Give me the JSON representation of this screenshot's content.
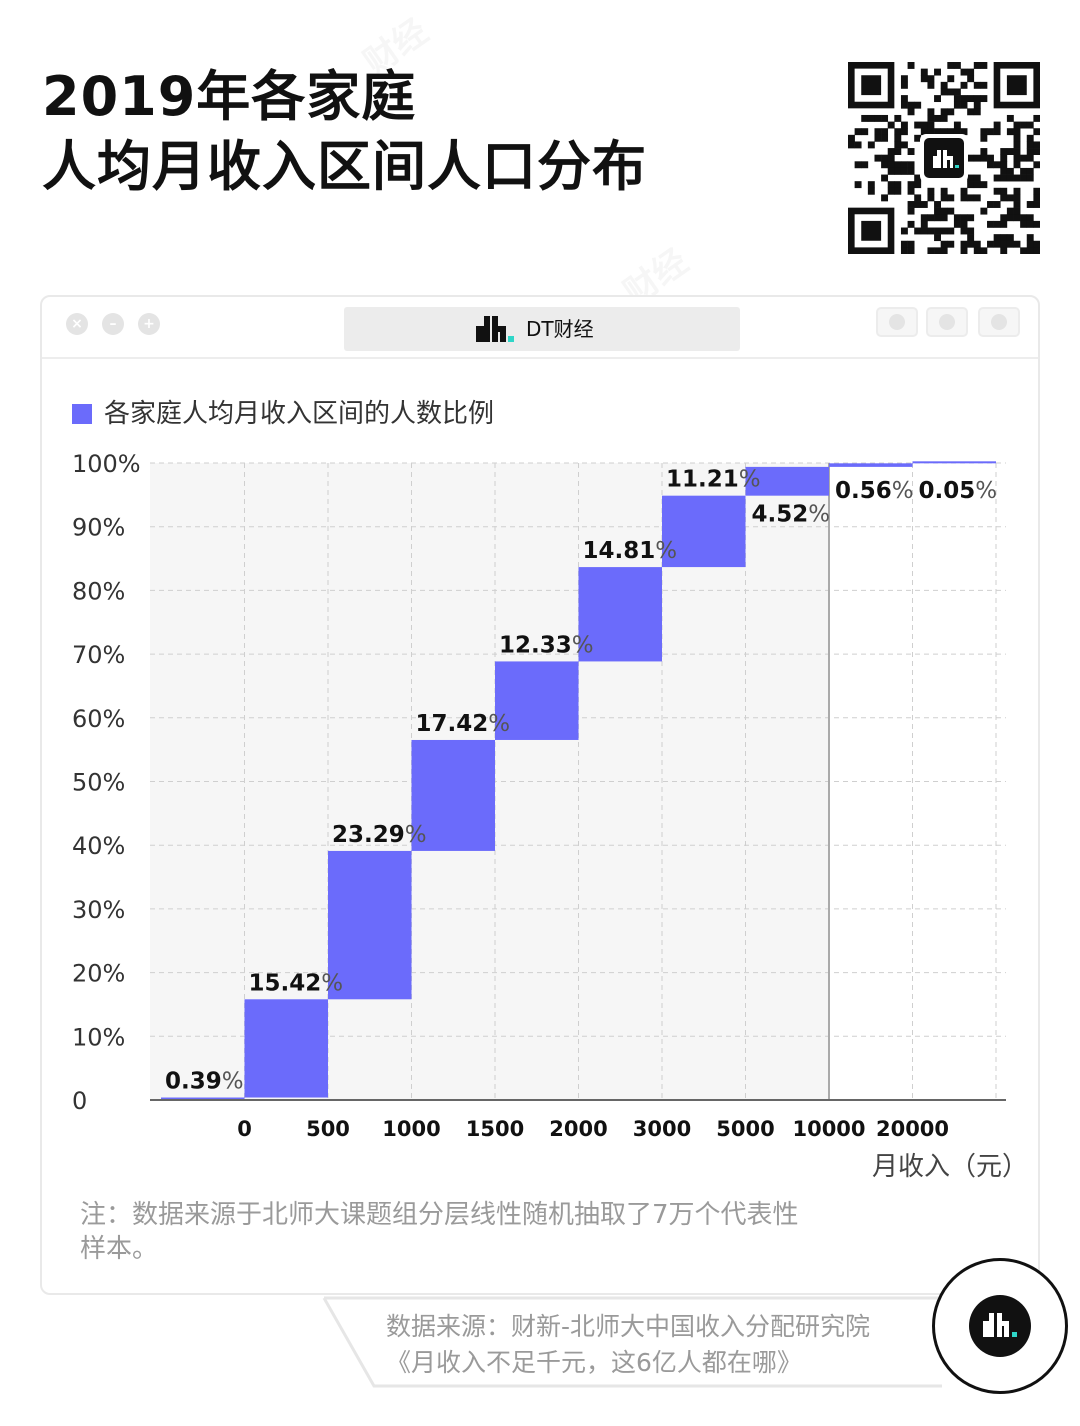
{
  "title": {
    "line1": "2019年各家庭",
    "line2": "人均月收入区间人口分布"
  },
  "window": {
    "tab_title": "DT财经",
    "brand_logo_icon": "dt-logo-icon",
    "qr_icon": "qr-code-icon"
  },
  "legend": {
    "label": "各家庭人均月收入区间的人数比例",
    "color": "#6b6bfb"
  },
  "watermark": "财经",
  "chart_data": {
    "type": "bar",
    "subtype": "waterfall",
    "title": "2019年各家庭人均月收入区间人口分布",
    "series_name": "各家庭人均月收入区间的人数比例",
    "x_tick_labels": [
      "0",
      "500",
      "1000",
      "1500",
      "2000",
      "3000",
      "5000",
      "10000",
      "20000"
    ],
    "xlabel": "月收入（元）",
    "ylabel": "",
    "y_tick_labels": [
      "0",
      "10%",
      "20%",
      "30%",
      "40%",
      "50%",
      "60%",
      "70%",
      "80%",
      "90%",
      "100%"
    ],
    "ylim": [
      0,
      100
    ],
    "values": [
      0.39,
      15.42,
      23.29,
      17.42,
      12.33,
      14.81,
      11.21,
      4.52,
      0.56,
      0.05
    ],
    "value_labels": [
      "0.39",
      "15.42",
      "23.29",
      "17.42",
      "12.33",
      "14.81",
      "11.21",
      "4.52",
      "0.56",
      "0.05"
    ],
    "value_suffix": "%",
    "grid": true,
    "legend_position": "top-left",
    "color": "#6b6bfb"
  },
  "note": "注：数据来源于北师大课题组分层线性随机抽取了7万个代表性样本。",
  "source": {
    "line1": "数据来源：财新-北师大中国收入分配研究院",
    "line2": "《月收入不足千元，这6亿人都在哪》"
  }
}
